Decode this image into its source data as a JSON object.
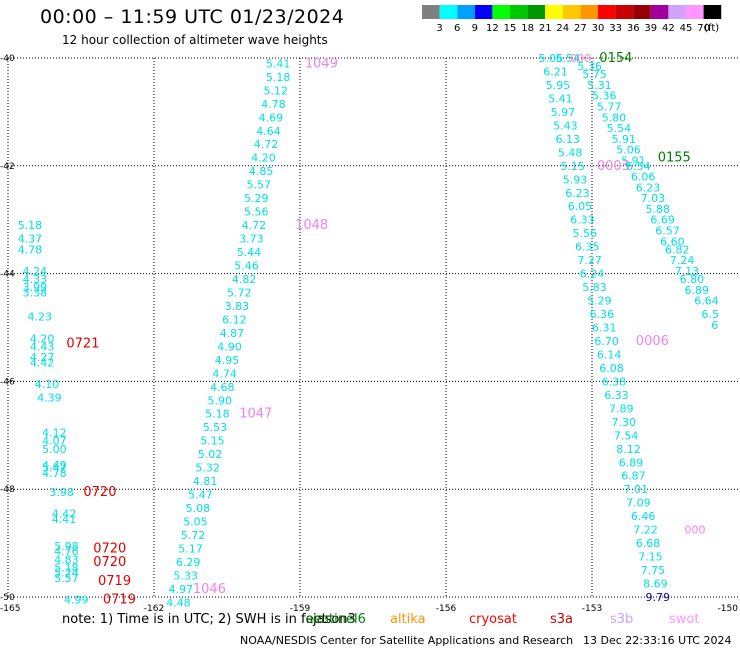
{
  "title": "00:00  –  11:59 UTC 01/23/2024",
  "subtitle": "12 hour collection of altimeter wave heights",
  "colorbar": {
    "unit": "(ft)",
    "bins": [
      {
        "label": "3",
        "color": "#7f7f7f"
      },
      {
        "label": "6",
        "color": "#00ffff"
      },
      {
        "label": "9",
        "color": "#00a0ff"
      },
      {
        "label": "12",
        "color": "#0000ff"
      },
      {
        "label": "15",
        "color": "#00ff00"
      },
      {
        "label": "18",
        "color": "#00c800"
      },
      {
        "label": "21",
        "color": "#009600"
      },
      {
        "label": "24",
        "color": "#ffff00"
      },
      {
        "label": "27",
        "color": "#ffc800"
      },
      {
        "label": "30",
        "color": "#ff9600"
      },
      {
        "label": "33",
        "color": "#ff0000"
      },
      {
        "label": "36",
        "color": "#c80000"
      },
      {
        "label": "39",
        "color": "#960000"
      },
      {
        "label": "42",
        "color": "#a000a0"
      },
      {
        "label": "45",
        "color": "#d2a0ff"
      },
      {
        "label": "70",
        "color": "#ff96ff"
      },
      {
        "label": "",
        "color": "#000000"
      }
    ]
  },
  "axes": {
    "lat_labels": [
      "-40",
      "-42",
      "-44",
      "-46",
      "-48",
      "-50"
    ],
    "lon_labels": [
      "-165",
      "-162",
      "-159",
      "-156",
      "-153",
      "-150"
    ]
  },
  "track_colors": {
    "cyan": "#00e0e8",
    "pink": "#ee82ee",
    "red": "#e00000",
    "green": "#008000",
    "navy": "#000090"
  },
  "map_labels": [
    {
      "t": "5.41",
      "lon": -159.7,
      "lat": -40.1,
      "c": "cyan"
    },
    {
      "t": "5.18",
      "lon": -159.7,
      "lat": -40.35,
      "c": "cyan"
    },
    {
      "t": "5.12",
      "lon": -159.75,
      "lat": -40.6,
      "c": "cyan"
    },
    {
      "t": "4.78",
      "lon": -159.8,
      "lat": -40.85,
      "c": "cyan"
    },
    {
      "t": "4.69",
      "lon": -159.85,
      "lat": -41.1,
      "c": "cyan"
    },
    {
      "t": "4.64",
      "lon": -159.9,
      "lat": -41.35,
      "c": "cyan"
    },
    {
      "t": "4.72",
      "lon": -159.95,
      "lat": -41.6,
      "c": "cyan"
    },
    {
      "t": "4.20",
      "lon": -160.0,
      "lat": -41.85,
      "c": "cyan"
    },
    {
      "t": "4.85",
      "lon": -160.05,
      "lat": -42.1,
      "c": "cyan"
    },
    {
      "t": "5.57",
      "lon": -160.1,
      "lat": -42.35,
      "c": "cyan"
    },
    {
      "t": "5.29",
      "lon": -160.15,
      "lat": -42.6,
      "c": "cyan"
    },
    {
      "t": "5.56",
      "lon": -160.15,
      "lat": -42.85,
      "c": "cyan"
    },
    {
      "t": "4.72",
      "lon": -160.2,
      "lat": -43.1,
      "c": "cyan"
    },
    {
      "t": "3.73",
      "lon": -160.25,
      "lat": -43.35,
      "c": "cyan"
    },
    {
      "t": "5.44",
      "lon": -160.3,
      "lat": -43.6,
      "c": "cyan"
    },
    {
      "t": "5.46",
      "lon": -160.35,
      "lat": -43.85,
      "c": "cyan"
    },
    {
      "t": "4.82",
      "lon": -160.4,
      "lat": -44.1,
      "c": "cyan"
    },
    {
      "t": "5.72",
      "lon": -160.5,
      "lat": -44.35,
      "c": "cyan"
    },
    {
      "t": "3.83",
      "lon": -160.55,
      "lat": -44.6,
      "c": "cyan"
    },
    {
      "t": "6.12",
      "lon": -160.6,
      "lat": -44.85,
      "c": "cyan"
    },
    {
      "t": "4.87",
      "lon": -160.65,
      "lat": -45.1,
      "c": "cyan"
    },
    {
      "t": "4.90",
      "lon": -160.7,
      "lat": -45.35,
      "c": "cyan"
    },
    {
      "t": "4.95",
      "lon": -160.75,
      "lat": -45.6,
      "c": "cyan"
    },
    {
      "t": "4.74",
      "lon": -160.8,
      "lat": -45.85,
      "c": "cyan"
    },
    {
      "t": "4.68",
      "lon": -160.85,
      "lat": -46.1,
      "c": "cyan"
    },
    {
      "t": "5.90",
      "lon": -160.9,
      "lat": -46.35,
      "c": "cyan"
    },
    {
      "t": "5.18",
      "lon": -160.95,
      "lat": -46.6,
      "c": "cyan"
    },
    {
      "t": "5.53",
      "lon": -161.0,
      "lat": -46.85,
      "c": "cyan"
    },
    {
      "t": "5.15",
      "lon": -161.05,
      "lat": -47.1,
      "c": "cyan"
    },
    {
      "t": "5.02",
      "lon": -161.1,
      "lat": -47.35,
      "c": "cyan"
    },
    {
      "t": "5.32",
      "lon": -161.15,
      "lat": -47.6,
      "c": "cyan"
    },
    {
      "t": "4.81",
      "lon": -161.2,
      "lat": -47.85,
      "c": "cyan"
    },
    {
      "t": "5.47",
      "lon": -161.3,
      "lat": -48.1,
      "c": "cyan"
    },
    {
      "t": "5.08",
      "lon": -161.35,
      "lat": -48.35,
      "c": "cyan"
    },
    {
      "t": "5.05",
      "lon": -161.4,
      "lat": -48.6,
      "c": "cyan"
    },
    {
      "t": "5.72",
      "lon": -161.45,
      "lat": -48.85,
      "c": "cyan"
    },
    {
      "t": "5.17",
      "lon": -161.5,
      "lat": -49.1,
      "c": "cyan"
    },
    {
      "t": "6.29",
      "lon": -161.55,
      "lat": -49.35,
      "c": "cyan"
    },
    {
      "t": "5.33",
      "lon": -161.6,
      "lat": -49.6,
      "c": "cyan"
    },
    {
      "t": "4.97",
      "lon": -161.7,
      "lat": -49.85,
      "c": "cyan"
    },
    {
      "t": "4.48",
      "lon": -161.75,
      "lat": -50.1,
      "c": "cyan"
    },
    {
      "t": "1049",
      "lon": -158.9,
      "lat": -40.1,
      "c": "pink"
    },
    {
      "t": "1048",
      "lon": -159.1,
      "lat": -43.1,
      "c": "pink"
    },
    {
      "t": "1047",
      "lon": -160.25,
      "lat": -46.6,
      "c": "pink"
    },
    {
      "t": "1046",
      "lon": -161.2,
      "lat": -49.85,
      "c": "pink"
    },
    {
      "t": "5.18",
      "lon": -164.8,
      "lat": -43.1,
      "c": "cyan"
    },
    {
      "t": "4.37",
      "lon": -164.8,
      "lat": -43.35,
      "c": "cyan"
    },
    {
      "t": "4.78",
      "lon": -164.8,
      "lat": -43.55,
      "c": "cyan"
    },
    {
      "t": "4.24",
      "lon": -164.7,
      "lat": -43.95,
      "c": "cyan"
    },
    {
      "t": "4.33",
      "lon": -164.7,
      "lat": -44.1,
      "c": "cyan"
    },
    {
      "t": "3.99",
      "lon": -164.7,
      "lat": -44.25,
      "c": "cyan"
    },
    {
      "t": "3.38",
      "lon": -164.7,
      "lat": -44.35,
      "c": "cyan"
    },
    {
      "t": "4.23",
      "lon": -164.6,
      "lat": -44.8,
      "c": "cyan"
    },
    {
      "t": "4.20",
      "lon": -164.55,
      "lat": -45.2,
      "c": "cyan"
    },
    {
      "t": "4.43",
      "lon": -164.55,
      "lat": -45.35,
      "c": "cyan"
    },
    {
      "t": "4.27",
      "lon": -164.55,
      "lat": -45.55,
      "c": "cyan"
    },
    {
      "t": "4.42",
      "lon": -164.55,
      "lat": -45.65,
      "c": "cyan"
    },
    {
      "t": "4.10",
      "lon": -164.45,
      "lat": -46.05,
      "c": "cyan"
    },
    {
      "t": "4.39",
      "lon": -164.4,
      "lat": -46.3,
      "c": "cyan"
    },
    {
      "t": "4.12",
      "lon": -164.3,
      "lat": -46.95,
      "c": "cyan"
    },
    {
      "t": "4.07",
      "lon": -164.3,
      "lat": -47.1,
      "c": "cyan"
    },
    {
      "t": "5.00",
      "lon": -164.3,
      "lat": -47.25,
      "c": "cyan"
    },
    {
      "t": "4.49",
      "lon": -164.3,
      "lat": -47.55,
      "c": "cyan"
    },
    {
      "t": "5.47",
      "lon": -164.3,
      "lat": -47.6,
      "c": "cyan"
    },
    {
      "t": "4.78",
      "lon": -164.3,
      "lat": -47.7,
      "c": "cyan"
    },
    {
      "t": "3.98",
      "lon": -164.15,
      "lat": -48.05,
      "c": "cyan"
    },
    {
      "t": "4.42",
      "lon": -164.1,
      "lat": -48.45,
      "c": "cyan"
    },
    {
      "t": "4.41",
      "lon": -164.1,
      "lat": -48.55,
      "c": "cyan"
    },
    {
      "t": "5.98",
      "lon": -164.05,
      "lat": -49.05,
      "c": "cyan"
    },
    {
      "t": "4.76",
      "lon": -164.05,
      "lat": -49.15,
      "c": "cyan"
    },
    {
      "t": "4.83",
      "lon": -164.05,
      "lat": -49.3,
      "c": "cyan"
    },
    {
      "t": "5.18",
      "lon": -164.05,
      "lat": -49.45,
      "c": "cyan"
    },
    {
      "t": "5.24",
      "lon": -164.05,
      "lat": -49.55,
      "c": "cyan"
    },
    {
      "t": "5.57",
      "lon": -164.05,
      "lat": -49.65,
      "c": "cyan"
    },
    {
      "t": "4.99",
      "lon": -163.85,
      "lat": -50.05,
      "c": "cyan"
    },
    {
      "t": "0721",
      "lon": -163.8,
      "lat": -45.3,
      "c": "red"
    },
    {
      "t": "0720",
      "lon": -163.45,
      "lat": -48.05,
      "c": "red"
    },
    {
      "t": "0720",
      "lon": -163.25,
      "lat": -49.1,
      "c": "red"
    },
    {
      "t": "0720",
      "lon": -163.25,
      "lat": -49.35,
      "c": "red"
    },
    {
      "t": "0719",
      "lon": -163.15,
      "lat": -49.7,
      "c": "red"
    },
    {
      "t": "0719",
      "lon": -163.05,
      "lat": -50.05,
      "c": "red"
    },
    {
      "t": "5.06",
      "lon": -154.1,
      "lat": -40.0,
      "c": "cyan"
    },
    {
      "t": "5.54",
      "lon": -153.75,
      "lat": -40.0,
      "c": "cyan"
    },
    {
      "t": "000",
      "lon": -153.45,
      "lat": -40.0,
      "c": "pink"
    },
    {
      "t": "0154",
      "lon": -152.85,
      "lat": -40.0,
      "c": "green"
    },
    {
      "t": "6.21",
      "lon": -154.0,
      "lat": -40.25,
      "c": "cyan"
    },
    {
      "t": "5.36",
      "lon": -153.3,
      "lat": -40.15,
      "c": "cyan"
    },
    {
      "t": "5.75",
      "lon": -153.2,
      "lat": -40.3,
      "c": "cyan"
    },
    {
      "t": "5.95",
      "lon": -153.95,
      "lat": -40.5,
      "c": "cyan"
    },
    {
      "t": "5.31",
      "lon": -153.1,
      "lat": -40.5,
      "c": "cyan"
    },
    {
      "t": "5.41",
      "lon": -153.9,
      "lat": -40.75,
      "c": "cyan"
    },
    {
      "t": "5.36",
      "lon": -153.0,
      "lat": -40.7,
      "c": "cyan"
    },
    {
      "t": "5.97",
      "lon": -153.85,
      "lat": -41.0,
      "c": "cyan"
    },
    {
      "t": "5.77",
      "lon": -152.9,
      "lat": -40.9,
      "c": "cyan"
    },
    {
      "t": "5.43",
      "lon": -153.8,
      "lat": -41.25,
      "c": "cyan"
    },
    {
      "t": "5.80",
      "lon": -152.8,
      "lat": -41.1,
      "c": "cyan"
    },
    {
      "t": "5.54",
      "lon": -152.7,
      "lat": -41.3,
      "c": "cyan"
    },
    {
      "t": "6.13",
      "lon": -153.75,
      "lat": -41.5,
      "c": "cyan"
    },
    {
      "t": "5.91",
      "lon": -152.6,
      "lat": -41.5,
      "c": "cyan"
    },
    {
      "t": "5.48",
      "lon": -153.7,
      "lat": -41.75,
      "c": "cyan"
    },
    {
      "t": "5.06",
      "lon": -152.5,
      "lat": -41.7,
      "c": "cyan"
    },
    {
      "t": "5.91",
      "lon": -152.4,
      "lat": -41.9,
      "c": "cyan"
    },
    {
      "t": "0155",
      "lon": -151.65,
      "lat": -41.85,
      "c": "green"
    },
    {
      "t": "5.15",
      "lon": -153.65,
      "lat": -42.0,
      "c": "cyan"
    },
    {
      "t": "0003",
      "lon": -152.9,
      "lat": -42.0,
      "c": "pink"
    },
    {
      "t": "6.54",
      "lon": -152.3,
      "lat": -42.0,
      "c": "cyan"
    },
    {
      "t": "5.93",
      "lon": -153.6,
      "lat": -42.25,
      "c": "cyan"
    },
    {
      "t": "6.06",
      "lon": -152.2,
      "lat": -42.2,
      "c": "cyan"
    },
    {
      "t": "6.23",
      "lon": -153.55,
      "lat": -42.5,
      "c": "cyan"
    },
    {
      "t": "6.23",
      "lon": -152.1,
      "lat": -42.4,
      "c": "cyan"
    },
    {
      "t": "7.03",
      "lon": -152.0,
      "lat": -42.6,
      "c": "cyan"
    },
    {
      "t": "6.05",
      "lon": -153.5,
      "lat": -42.75,
      "c": "cyan"
    },
    {
      "t": "5.88",
      "lon": -151.9,
      "lat": -42.8,
      "c": "cyan"
    },
    {
      "t": "6.33",
      "lon": -153.45,
      "lat": -43.0,
      "c": "cyan"
    },
    {
      "t": "6.69",
      "lon": -151.8,
      "lat": -43.0,
      "c": "cyan"
    },
    {
      "t": "6.57",
      "lon": -151.7,
      "lat": -43.2,
      "c": "cyan"
    },
    {
      "t": "5.56",
      "lon": -153.4,
      "lat": -43.25,
      "c": "cyan"
    },
    {
      "t": "6.60",
      "lon": -151.6,
      "lat": -43.4,
      "c": "cyan"
    },
    {
      "t": "6.35",
      "lon": -153.35,
      "lat": -43.5,
      "c": "cyan"
    },
    {
      "t": "6.82",
      "lon": -151.5,
      "lat": -43.55,
      "c": "cyan"
    },
    {
      "t": "7.27",
      "lon": -153.3,
      "lat": -43.75,
      "c": "cyan"
    },
    {
      "t": "7.24",
      "lon": -151.4,
      "lat": -43.75,
      "c": "cyan"
    },
    {
      "t": "7.13",
      "lon": -151.3,
      "lat": -43.95,
      "c": "cyan"
    },
    {
      "t": "6.24",
      "lon": -153.25,
      "lat": -44.0,
      "c": "cyan"
    },
    {
      "t": "6.80",
      "lon": -151.2,
      "lat": -44.1,
      "c": "cyan"
    },
    {
      "t": "5.83",
      "lon": -153.2,
      "lat": -44.25,
      "c": "cyan"
    },
    {
      "t": "6.89",
      "lon": -151.1,
      "lat": -44.3,
      "c": "cyan"
    },
    {
      "t": "5.29",
      "lon": -153.1,
      "lat": -44.5,
      "c": "cyan"
    },
    {
      "t": "6.64",
      "lon": -150.9,
      "lat": -44.5,
      "c": "cyan"
    },
    {
      "t": "6.36",
      "lon": -153.05,
      "lat": -44.75,
      "c": "cyan"
    },
    {
      "t": "6.5",
      "lon": -150.75,
      "lat": -44.75,
      "c": "cyan"
    },
    {
      "t": "6.31",
      "lon": -153.0,
      "lat": -45.0,
      "c": "cyan"
    },
    {
      "t": "6",
      "lon": -150.55,
      "lat": -44.95,
      "c": "cyan"
    },
    {
      "t": "6.70",
      "lon": -152.95,
      "lat": -45.25,
      "c": "cyan"
    },
    {
      "t": "0006",
      "lon": -152.1,
      "lat": -45.25,
      "c": "pink"
    },
    {
      "t": "6.14",
      "lon": -152.9,
      "lat": -45.5,
      "c": "cyan"
    },
    {
      "t": "6.08",
      "lon": -152.85,
      "lat": -45.75,
      "c": "cyan"
    },
    {
      "t": "6.38",
      "lon": -152.8,
      "lat": -46.0,
      "c": "cyan"
    },
    {
      "t": "6.33",
      "lon": -152.75,
      "lat": -46.25,
      "c": "cyan"
    },
    {
      "t": "7.89",
      "lon": -152.65,
      "lat": -46.5,
      "c": "cyan"
    },
    {
      "t": "7.30",
      "lon": -152.6,
      "lat": -46.75,
      "c": "cyan"
    },
    {
      "t": "7.54",
      "lon": -152.55,
      "lat": -47.0,
      "c": "cyan"
    },
    {
      "t": "8.12",
      "lon": -152.5,
      "lat": -47.25,
      "c": "cyan"
    },
    {
      "t": "6.89",
      "lon": -152.45,
      "lat": -47.5,
      "c": "cyan"
    },
    {
      "t": "6.87",
      "lon": -152.4,
      "lat": -47.75,
      "c": "cyan"
    },
    {
      "t": "7.01",
      "lon": -152.35,
      "lat": -48.0,
      "c": "cyan"
    },
    {
      "t": "7.09",
      "lon": -152.3,
      "lat": -48.25,
      "c": "cyan"
    },
    {
      "t": "6.46",
      "lon": -152.2,
      "lat": -48.5,
      "c": "cyan"
    },
    {
      "t": "7.22",
      "lon": -152.15,
      "lat": -48.75,
      "c": "cyan"
    },
    {
      "t": "000",
      "lon": -151.1,
      "lat": -48.75,
      "c": "pink"
    },
    {
      "t": "6.68",
      "lon": -152.1,
      "lat": -49.0,
      "c": "cyan"
    },
    {
      "t": "7.15",
      "lon": -152.05,
      "lat": -49.25,
      "c": "cyan"
    },
    {
      "t": "7.75",
      "lon": -152.0,
      "lat": -49.5,
      "c": "cyan"
    },
    {
      "t": "8.69",
      "lon": -151.95,
      "lat": -49.75,
      "c": "cyan"
    },
    {
      "t": "9.79",
      "lon": -151.9,
      "lat": -50.0,
      "c": "navy"
    }
  ],
  "note": "note:  1) Time is in UTC; 2) SWH is in feet",
  "satellites": [
    {
      "name": "jason3",
      "color": "#000000"
    },
    {
      "name": "sentinel6",
      "color": "#008000"
    },
    {
      "name": "altika",
      "color": "#ff9600"
    },
    {
      "name": "cryosat",
      "color": "#ff0000"
    },
    {
      "name": "s3a",
      "color": "#c80000"
    },
    {
      "name": "s3b",
      "color": "#c8a0ff"
    },
    {
      "name": "swot",
      "color": "#ff96ff"
    }
  ],
  "credit": "NOAA/NESDIS Center for Satellite Applications and Research",
  "stamp": "13 Dec 22:33:16 UTC 2024"
}
